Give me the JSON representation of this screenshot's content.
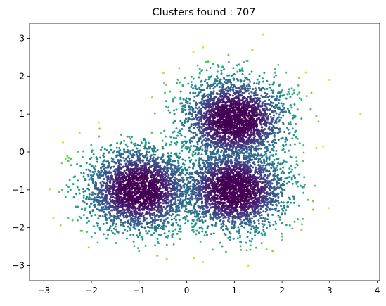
{
  "chart_data": {
    "type": "scatter",
    "title": "Clusters found : 707",
    "xlabel": "",
    "ylabel": "",
    "xlim": [
      -3.3,
      4.05
    ],
    "ylim": [
      -3.4,
      3.4
    ],
    "x_ticks": [
      -3,
      -2,
      -1,
      0,
      1,
      2,
      3,
      4
    ],
    "y_ticks": [
      -3,
      -2,
      -1,
      0,
      1,
      2,
      3
    ],
    "grid": false,
    "legend": "none",
    "colormap": "viridis",
    "clusters_found": 707,
    "blobs": [
      {
        "center": [
          1.0,
          0.85
        ],
        "std": 0.55,
        "points": 2600
      },
      {
        "center": [
          -1.0,
          -1.0
        ],
        "std": 0.55,
        "points": 2600
      },
      {
        "center": [
          1.0,
          -1.0
        ],
        "std": 0.55,
        "points": 2600
      }
    ],
    "marker_size": 1.5,
    "extra_outliers": [
      [
        3.65,
        1.0
      ],
      [
        3.0,
        1.9
      ],
      [
        -2.8,
        -1.75
      ],
      [
        2.5,
        2.1
      ],
      [
        -2.6,
        0.25
      ],
      [
        1.6,
        3.1
      ]
    ]
  }
}
